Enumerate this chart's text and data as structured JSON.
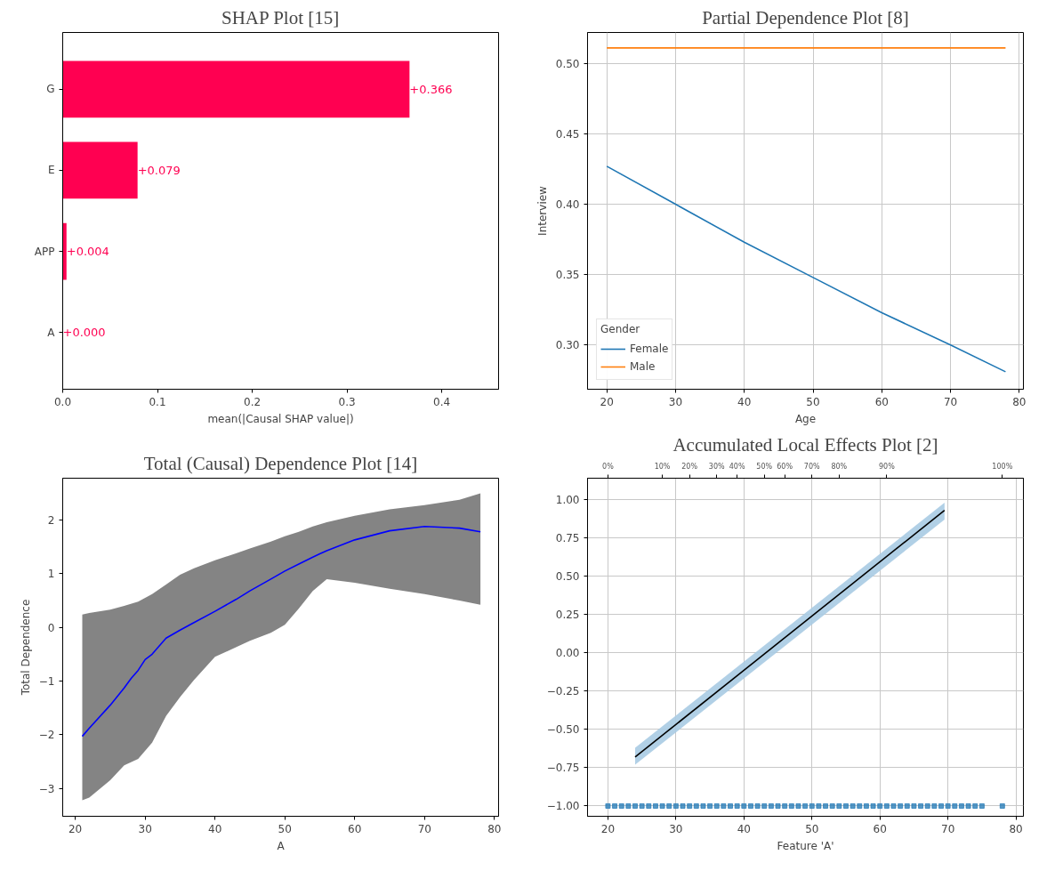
{
  "chart_data": [
    {
      "type": "bar",
      "orientation": "horizontal",
      "title": "SHAP Plot [15]",
      "xlabel": "mean(|Causal SHAP value|)",
      "categories": [
        "G",
        "E",
        "APP",
        "A"
      ],
      "values": [
        0.366,
        0.079,
        0.004,
        0.0
      ],
      "color": "#ff0051",
      "value_labels": [
        "+0.366",
        "+0.079",
        "+0.004",
        "+0.000"
      ],
      "xlim": [
        0,
        0.46
      ],
      "xticks": [
        {
          "value": 0,
          "label": "0.0"
        },
        0.1,
        0.2,
        0.3,
        0.4
      ],
      "grid": false
    },
    {
      "type": "line",
      "title": "Partial Dependence Plot [8]",
      "xlabel": "Age",
      "ylabel": "Interview",
      "legend_title": "Gender",
      "legend": "bottom left",
      "grid": true,
      "xlim": [
        17.2,
        80.6
      ],
      "ylim": [
        0.2686,
        0.522
      ],
      "xticks": [
        20,
        30,
        40,
        50,
        60,
        70,
        80
      ],
      "yticks": [
        {
          "value": 0.3,
          "label": "0.30"
        },
        0.35,
        {
          "value": 0.4,
          "label": "0.40"
        },
        0.45,
        {
          "value": 0.5,
          "label": "0.50"
        }
      ],
      "series": [
        {
          "name": "Female",
          "color": "#1f77b4",
          "x": [
            20,
            30,
            40,
            50,
            60,
            70,
            78
          ],
          "values": [
            0.427,
            0.4,
            0.373,
            0.348,
            0.323,
            0.3,
            0.281
          ]
        },
        {
          "name": "Male",
          "color": "#ff7f0e",
          "x": [
            20,
            78
          ],
          "values": [
            0.511,
            0.511
          ]
        }
      ]
    },
    {
      "type": "line",
      "title": "Total (Causal) Dependence Plot [14]",
      "xlabel": "A",
      "ylabel": "Total Dependence",
      "grid": false,
      "xlim": [
        18.2,
        80.6
      ],
      "ylim": [
        -3.52,
        2.78
      ],
      "xticks": [
        20,
        30,
        40,
        50,
        60,
        70,
        80
      ],
      "yticks": [
        {
          "value": -3,
          "label": "−3"
        },
        {
          "value": -2,
          "label": "−2"
        },
        {
          "value": -1,
          "label": "−1"
        },
        0,
        1,
        2
      ],
      "series": [
        {
          "color": "#777777",
          "x": [
            21,
            22,
            25,
            27,
            29,
            31,
            33,
            35,
            37,
            40,
            43,
            45,
            48,
            50,
            52,
            54,
            56,
            60,
            65,
            70,
            75,
            78
          ],
          "values": [
            null,
            null,
            null,
            null,
            null,
            null,
            null,
            null,
            null,
            null,
            null,
            null,
            null,
            null,
            null,
            null,
            null,
            null,
            null,
            null,
            null,
            null
          ],
          "upper": [
            0.24,
            0.27,
            0.33,
            0.4,
            0.48,
            0.62,
            0.8,
            0.98,
            1.1,
            1.25,
            1.38,
            1.47,
            1.6,
            1.7,
            1.78,
            1.88,
            1.96,
            2.08,
            2.2,
            2.28,
            2.38,
            2.5
          ],
          "lower": [
            -3.22,
            -3.17,
            -2.85,
            -2.57,
            -2.45,
            -2.15,
            -1.65,
            -1.3,
            -0.98,
            -0.55,
            -0.37,
            -0.25,
            -0.1,
            0.05,
            0.35,
            0.68,
            0.9,
            0.83,
            0.72,
            0.62,
            0.5,
            0.42
          ]
        },
        {
          "color": "#0000ff",
          "x": [
            21,
            22,
            25,
            27,
            28,
            29,
            30,
            31,
            33,
            35,
            37,
            40,
            43,
            45,
            48,
            50,
            52,
            54,
            55,
            56,
            60,
            65,
            70,
            75,
            78
          ],
          "values": [
            -2.03,
            -1.88,
            -1.45,
            -1.13,
            -0.95,
            -0.8,
            -0.6,
            -0.5,
            -0.2,
            -0.05,
            0.09,
            0.3,
            0.52,
            0.68,
            0.9,
            1.05,
            1.18,
            1.31,
            1.37,
            1.43,
            1.63,
            1.8,
            1.88,
            1.85,
            1.78
          ]
        }
      ]
    },
    {
      "type": "line",
      "title": "Accumulated Local Effects Plot [2]",
      "xlabel": "Feature 'A'",
      "grid": true,
      "xlim": [
        17.0,
        81.1
      ],
      "ylim": [
        -1.067,
        1.14
      ],
      "xticks": [
        20,
        30,
        40,
        50,
        60,
        70,
        80
      ],
      "annotations": [
        {
          "text": "0%",
          "x": 20
        },
        {
          "text": "10%",
          "x": 28
        },
        {
          "text": "20%",
          "x": 32
        },
        {
          "text": "30%",
          "x": 36
        },
        {
          "text": "40%",
          "x": 39
        },
        {
          "text": "50%",
          "x": 43
        },
        {
          "text": "60%",
          "x": 46
        },
        {
          "text": "70%",
          "x": 50
        },
        {
          "text": "80%",
          "x": 54
        },
        {
          "text": "90%",
          "x": 61
        },
        {
          "text": "100%",
          "x": 78
        }
      ],
      "yticks": [
        {
          "value": -1,
          "label": "−1.00"
        },
        {
          "value": -0.75,
          "label": "−0.75"
        },
        {
          "value": -0.5,
          "label": "−0.50"
        },
        {
          "value": -0.25,
          "label": "−0.25"
        },
        {
          "value": 0,
          "label": "0.00"
        },
        {
          "value": 0.25,
          "label": "0.25"
        },
        {
          "value": 0.5,
          "label": "0.50"
        },
        {
          "value": 0.75,
          "label": "0.75"
        },
        {
          "value": 1,
          "label": "1.00"
        }
      ],
      "series": [
        {
          "color": "#a9cbe3",
          "x": [
            24,
            69.5
          ],
          "values": [
            null,
            null
          ],
          "upper": [
            -0.62,
            0.98
          ],
          "lower": [
            -0.73,
            0.87
          ]
        },
        {
          "color": "#000000",
          "x": [
            24,
            69.5
          ],
          "values": [
            -0.68,
            0.93
          ]
        },
        {
          "type": "scatter",
          "marker": "square",
          "color": "#1f77b4",
          "x": [
            20,
            21,
            22,
            23,
            24,
            25,
            26,
            27,
            28,
            29,
            30,
            31,
            32,
            33,
            34,
            35,
            36,
            37,
            38,
            39,
            40,
            41,
            42,
            43,
            44,
            45,
            46,
            47,
            48,
            49,
            50,
            51,
            52,
            53,
            54,
            55,
            56,
            57,
            58,
            59,
            60,
            61,
            62,
            63,
            64,
            65,
            66,
            67,
            68,
            69,
            70,
            71,
            72,
            73,
            74,
            75,
            78
          ],
          "values": [
            -1,
            -1,
            -1,
            -1,
            -1,
            -1,
            -1,
            -1,
            -1,
            -1,
            -1,
            -1,
            -1,
            -1,
            -1,
            -1,
            -1,
            -1,
            -1,
            -1,
            -1,
            -1,
            -1,
            -1,
            -1,
            -1,
            -1,
            -1,
            -1,
            -1,
            -1,
            -1,
            -1,
            -1,
            -1,
            -1,
            -1,
            -1,
            -1,
            -1,
            -1,
            -1,
            -1,
            -1,
            -1,
            -1,
            -1,
            -1,
            -1,
            -1,
            -1,
            -1,
            -1,
            -1,
            -1,
            -1,
            -1
          ]
        }
      ]
    }
  ]
}
